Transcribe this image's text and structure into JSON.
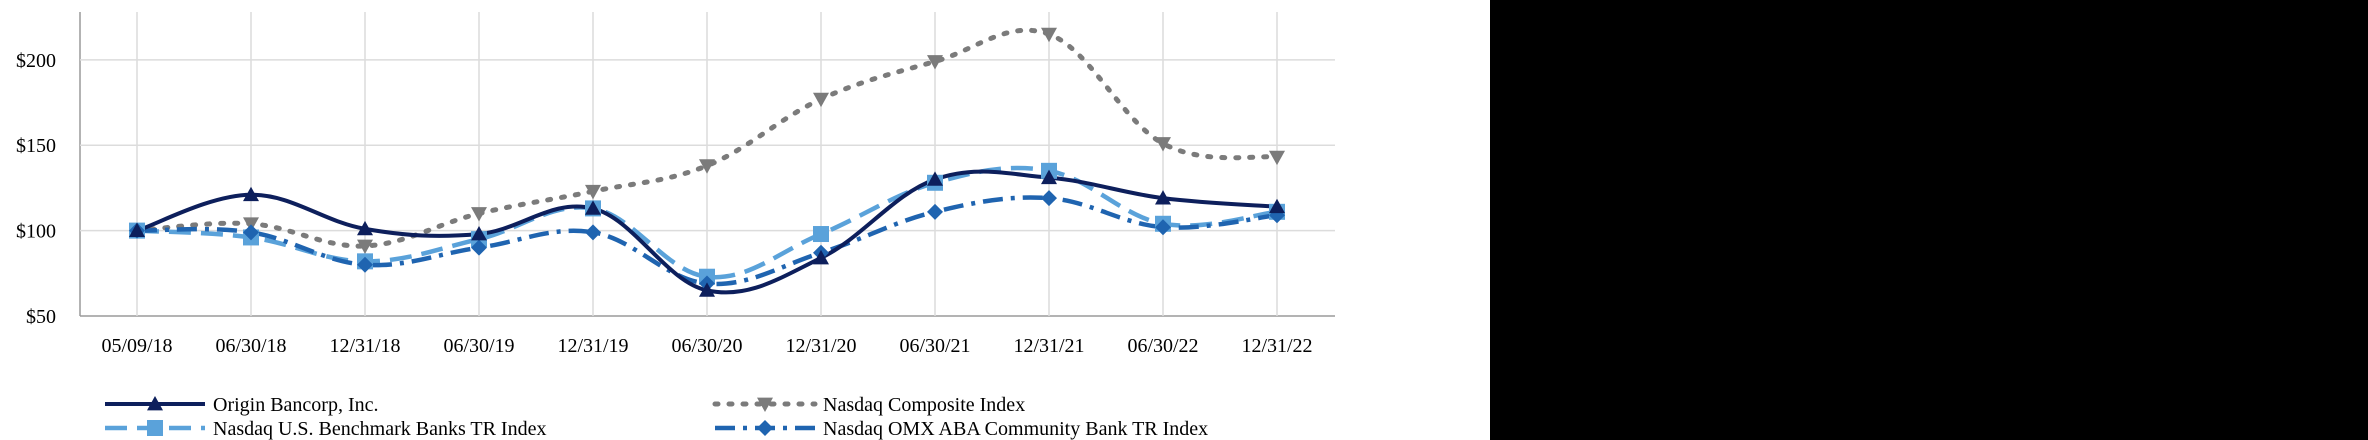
{
  "chart_data": {
    "type": "line",
    "title": "",
    "xlabel": "",
    "ylabel": "",
    "categories": [
      "05/09/18",
      "06/30/18",
      "12/31/18",
      "06/30/19",
      "12/31/19",
      "06/30/20",
      "12/31/20",
      "06/30/21",
      "12/31/21",
      "06/30/22",
      "12/31/22"
    ],
    "y_ticks": [
      "$50",
      "$100",
      "$150",
      "$200"
    ],
    "y_tick_values": [
      50,
      100,
      150,
      200
    ],
    "ylim": [
      50,
      228
    ],
    "grid": true,
    "legend_position": "bottom",
    "series": [
      {
        "name": "Origin Bancorp, Inc.",
        "values": [
          100,
          121,
          101,
          98,
          113,
          65,
          84,
          130,
          131,
          119,
          114
        ],
        "color": "#0d1f5c",
        "dash": "solid",
        "marker": "triangle-up"
      },
      {
        "name": "Nasdaq Composite Index",
        "values": [
          100,
          104,
          91,
          110,
          123,
          138,
          177,
          199,
          215,
          151,
          143
        ],
        "color": "#7b7b7b",
        "dash": "dotted",
        "marker": "triangle-down"
      },
      {
        "name": "Nasdaq U.S. Benchmark Banks TR Index",
        "values": [
          100,
          96,
          82,
          95,
          113,
          73,
          98,
          128,
          135,
          104,
          111
        ],
        "color": "#5aa2da",
        "dash": "dashed",
        "marker": "square"
      },
      {
        "name": "Nasdaq OMX ABA Community Bank TR Index",
        "values": [
          100,
          99,
          80,
          90,
          99,
          69,
          87,
          111,
          119,
          102,
          109
        ],
        "color": "#1f64b0",
        "dash": "dash-dot",
        "marker": "diamond"
      }
    ]
  }
}
